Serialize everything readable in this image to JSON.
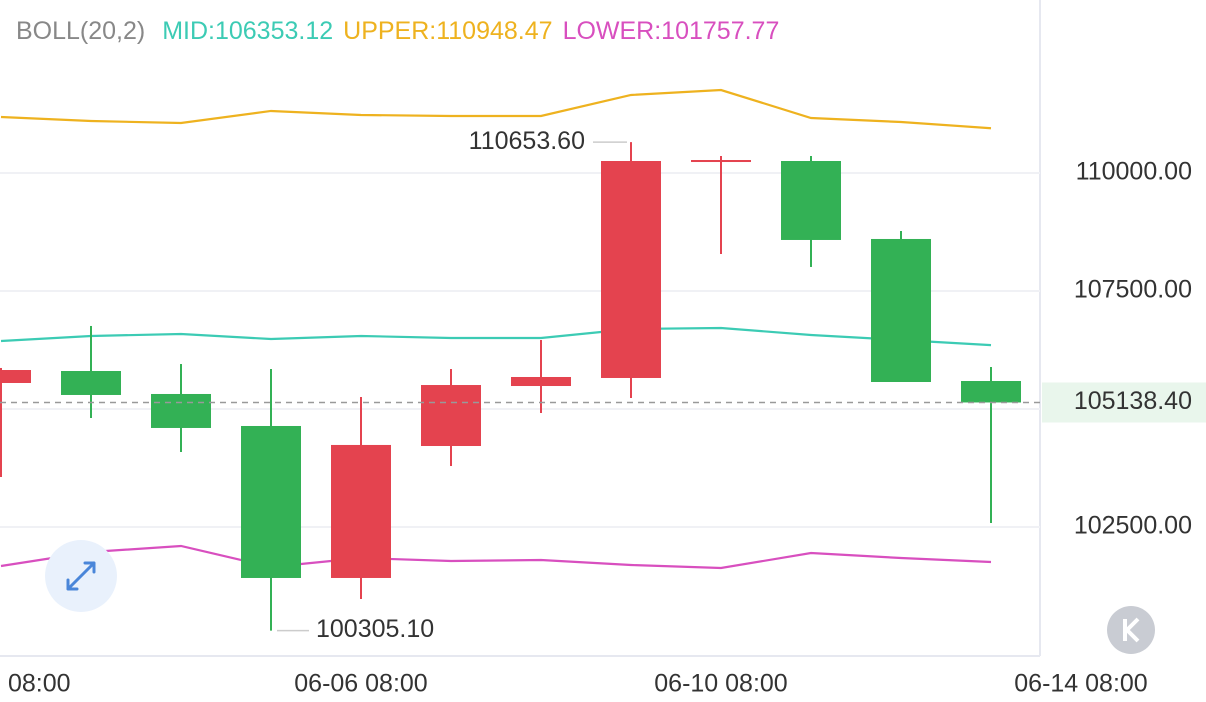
{
  "chart_data": {
    "type": "candlestick",
    "indicator_label": "BOLL(20,2)",
    "categories": [
      "08:00",
      null,
      null,
      null,
      "06-06 08:00",
      null,
      null,
      null,
      "06-10 08:00",
      null,
      null,
      null,
      "06-14 08:00"
    ],
    "open": [
      105551,
      105805,
      105318,
      104640,
      101420,
      104216,
      105487,
      105657,
      110233,
      110254,
      108602,
      105593,
      null
    ],
    "high": [
      105869,
      106759,
      105953,
      105847,
      105254,
      105847,
      106462,
      110653.6,
      110360,
      110360,
      108771,
      105890,
      null
    ],
    "low": [
      103559,
      104809,
      104089,
      100305.1,
      100975,
      103792,
      104915,
      105233,
      108284,
      108009,
      105572,
      102585,
      null
    ],
    "close": [
      105826,
      105297,
      104598,
      101420,
      104238,
      105508,
      105678,
      110254,
      110275,
      108581,
      105572,
      105138.4,
      null
    ],
    "up_color": "#e4434f",
    "down_color": "#33b155",
    "series": [
      {
        "name": "UPPER",
        "legend_label": "UPPER:110948.47",
        "color": "#eeb21f",
        "values": [
          111186,
          111102,
          111059,
          111314,
          111229,
          111208,
          111208,
          111653,
          111758,
          111165,
          111080,
          110948.47,
          null
        ]
      },
      {
        "name": "MID",
        "legend_label": "MID:106353.12",
        "color": "#3ccbb4",
        "values": [
          106441,
          106547,
          106589,
          106483,
          106547,
          106504,
          106504,
          106695,
          106716,
          106568,
          106462,
          106353.12,
          null
        ]
      },
      {
        "name": "LOWER",
        "legend_label": "LOWER:101757.77",
        "color": "#d84fbf",
        "values": [
          101674,
          101970,
          102098,
          101653,
          101843,
          101780,
          101801,
          101695,
          101631,
          101949,
          101843,
          101757.77,
          null
        ]
      }
    ],
    "legend_order": [
      1,
      0,
      2
    ],
    "ylim": [
      99767,
      113665
    ],
    "yticks": [
      {
        "value": 102500,
        "label": "102500.00"
      },
      {
        "value": 105000,
        "label": null
      },
      {
        "value": 107500,
        "label": "107500.00"
      },
      {
        "value": 110000,
        "label": "110000.00"
      }
    ],
    "grid": true,
    "last_price": {
      "value": 105138.4,
      "label": "105138.40"
    },
    "high_annotation": {
      "value": 110653.6,
      "label": "110653.60"
    },
    "low_annotation": {
      "value": 100305.1,
      "label": "100305.10"
    }
  }
}
